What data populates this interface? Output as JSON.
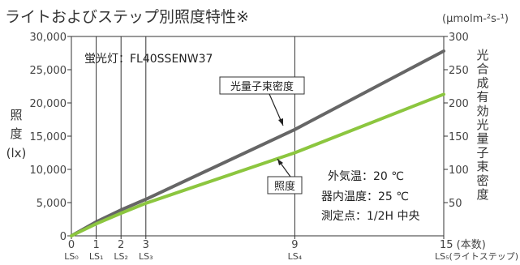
{
  "chart_data": {
    "type": "line",
    "title": "ライトおよびステップ別照度特性※",
    "y_unit_right": "(μmolm-²s-¹)",
    "ylabel_left": [
      "照",
      "度",
      "(lx)"
    ],
    "ylabel_right": [
      "光",
      "合",
      "成",
      "有",
      "効",
      "光",
      "量",
      "子",
      "束",
      "密",
      "度"
    ],
    "xlim": [
      0,
      15
    ],
    "ylim_left": [
      0,
      30000
    ],
    "ylim_right": [
      0,
      300
    ],
    "x_ticks": [
      {
        "x": 0,
        "label": "0",
        "sub": "LS₀"
      },
      {
        "x": 1,
        "label": "1",
        "sub": "LS₁"
      },
      {
        "x": 2,
        "label": "2",
        "sub": "LS₂"
      },
      {
        "x": 3,
        "label": "3",
        "sub": "LS₃"
      },
      {
        "x": 9,
        "label": "9",
        "sub": "LS₄"
      },
      {
        "x": 15,
        "label": "15 (本数)",
        "sub": "LS₅(ライトステップ)"
      }
    ],
    "y_ticks_left": [
      {
        "v": 0,
        "label": "0"
      },
      {
        "v": 5000,
        "label": "5,000"
      },
      {
        "v": 10000,
        "label": "10,000"
      },
      {
        "v": 15000,
        "label": "15,000"
      },
      {
        "v": 20000,
        "label": "20,000"
      },
      {
        "v": 25000,
        "label": "25,000"
      },
      {
        "v": 30000,
        "label": "30,000"
      }
    ],
    "y_ticks_right": [
      {
        "v": 50,
        "label": "50"
      },
      {
        "v": 100,
        "label": "100"
      },
      {
        "v": 150,
        "label": "150"
      },
      {
        "v": 200,
        "label": "200"
      },
      {
        "v": 250,
        "label": "250"
      },
      {
        "v": 300,
        "label": "300"
      }
    ],
    "vlines": [
      1,
      2,
      3,
      9
    ],
    "series": [
      {
        "name": "光量子束密度",
        "axis": "right",
        "color": "#666666",
        "x": [
          0,
          1,
          2,
          3,
          9,
          15
        ],
        "values": [
          0,
          21,
          39,
          55,
          160,
          278
        ]
      },
      {
        "name": "照度",
        "axis": "left",
        "color": "#8cc63f",
        "x": [
          0,
          1,
          2,
          3,
          9,
          15
        ],
        "values": [
          0,
          1800,
          3400,
          4900,
          12500,
          21300
        ]
      }
    ],
    "annotations": {
      "lamp": "蛍光灯：FL40SSENW37",
      "conditions": [
        "外気温：20 ℃",
        "器内温度：25 ℃",
        "測定点：1/2H 中央"
      ]
    }
  }
}
